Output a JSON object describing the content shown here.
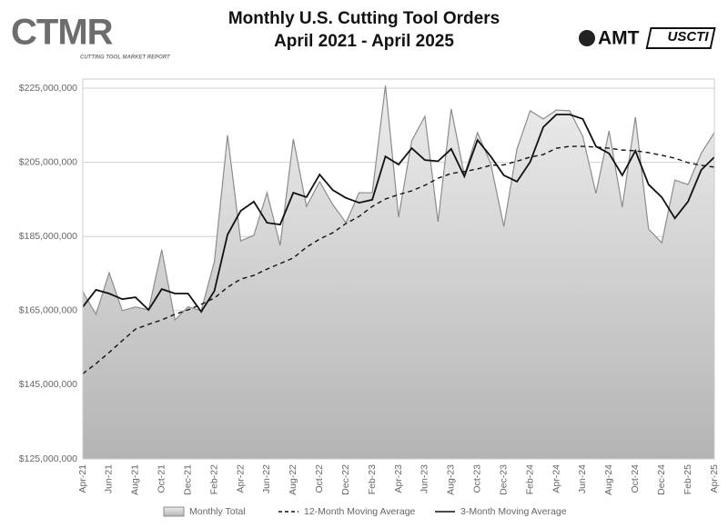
{
  "logo_left": {
    "text": "CTMR",
    "tagline": "CUTTING TOOL MARKET REPORT"
  },
  "logo_right": [
    "AMT",
    "USCTI"
  ],
  "chart_data": {
    "type": "line",
    "title": "Monthly U.S. Cutting Tool Orders",
    "subtitle": "April 2021 - April 2025",
    "categories": [
      "Apr-21",
      null,
      "Jun-21",
      null,
      "Aug-21",
      null,
      "Oct-21",
      null,
      "Dec-21",
      null,
      "Feb-22",
      null,
      "Apr-22",
      null,
      "Jun-22",
      null,
      "Aug-22",
      null,
      "Oct-22",
      null,
      "Dec-22",
      null,
      "Feb-23",
      null,
      "Apr-23",
      null,
      "Jun-23",
      null,
      "Aug-23",
      null,
      "Oct-23",
      null,
      "Dec-23",
      null,
      "Feb-24",
      null,
      "Apr-24",
      null,
      "Jun-24",
      null,
      "Aug-24",
      null,
      "Oct-24",
      null,
      "Dec-24",
      null,
      "Feb-25",
      null,
      "Apr-25"
    ],
    "series": [
      {
        "name": "Monthly Total",
        "style": "area",
        "color": "#8c8c8c",
        "values": [
          170100000,
          164000000,
          175200000,
          165000000,
          166000000,
          165200000,
          181400000,
          162500000,
          166000000,
          165000000,
          178200000,
          212300000,
          183800000,
          185300000,
          196800000,
          182600000,
          211300000,
          193100000,
          199800000,
          193600000,
          188700000,
          196800000,
          196800000,
          225700000,
          190200000,
          210800000,
          217400000,
          189000000,
          219400000,
          201500000,
          213000000,
          204700000,
          187700000,
          208600000,
          218900000,
          216700000,
          219100000,
          218900000,
          212000000,
          196600000,
          213500000,
          192900000,
          217200000,
          187000000,
          183300000,
          200200000,
          199000000,
          207400000,
          213000000
        ]
      },
      {
        "name": "12-Month Moving Average",
        "style": "dashed",
        "color": "#111111",
        "values": [
          148000000,
          150700000,
          153700000,
          156900000,
          160000000,
          161300000,
          162500000,
          164000000,
          165200000,
          166700000,
          168400000,
          171300000,
          173500000,
          174500000,
          176200000,
          177700000,
          179200000,
          182100000,
          184300000,
          186000000,
          188500000,
          190400000,
          193100000,
          195100000,
          196300000,
          197300000,
          198800000,
          200700000,
          202000000,
          202500000,
          203200000,
          204200000,
          204300000,
          205300000,
          206400000,
          207100000,
          208800000,
          209300000,
          209300000,
          209100000,
          208800000,
          208300000,
          208100000,
          207600000,
          206900000,
          206100000,
          204900000,
          204200000,
          203700000
        ]
      },
      {
        "name": "3-Month Moving Average",
        "style": "solid",
        "color": "#111111",
        "values": [
          166000000,
          170600000,
          169600000,
          168100000,
          168600000,
          165200000,
          170800000,
          169600000,
          169600000,
          164700000,
          170300000,
          185500000,
          191900000,
          194400000,
          188700000,
          188200000,
          196800000,
          195600000,
          201700000,
          197500000,
          195400000,
          194100000,
          194900000,
          206600000,
          204400000,
          208800000,
          205600000,
          205300000,
          208600000,
          201200000,
          211000000,
          206600000,
          201500000,
          199800000,
          205100000,
          214500000,
          217900000,
          217900000,
          216700000,
          209300000,
          207400000,
          201500000,
          208100000,
          199000000,
          195600000,
          189900000,
          194400000,
          202900000,
          206400000
        ]
      }
    ],
    "ylim": [
      125000000,
      225000000
    ],
    "yticks": [
      {
        "value": 125000000,
        "label": "$125,000,000"
      },
      {
        "value": 145000000,
        "label": "$145,000,000"
      },
      {
        "value": 165000000,
        "label": "$165,000,000"
      },
      {
        "value": 185000000,
        "label": "$185,000,000"
      },
      {
        "value": 205000000,
        "label": "$205,000,000"
      },
      {
        "value": 225000000,
        "label": "$225,000,000"
      }
    ],
    "grid": true,
    "legend": "bottom"
  }
}
